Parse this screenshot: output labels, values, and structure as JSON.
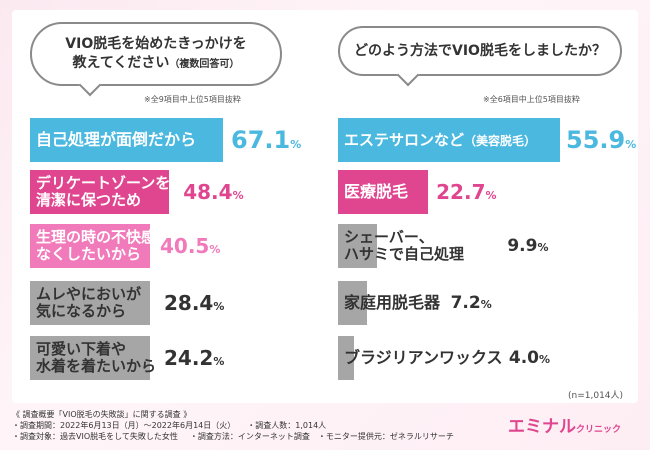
{
  "colors": {
    "left_primary": "#4bb8e0",
    "left_secondary": "#e0468f",
    "left_tertiary": "#f17aba",
    "gray": "#a6a6a6",
    "right_primary": "#4bb8e0",
    "right_secondary": "#e0468f",
    "text_dark": "#333333",
    "white": "#ffffff"
  },
  "left": {
    "question_line1": "VIO脱毛を始めたきっかけを",
    "question_line2": "教えてください",
    "question_suffix": "（複数回答可）",
    "note": "※全9項目中上位5項目抜粋"
  },
  "right": {
    "question": "どのよう方法でVIO脱毛をしましたか？",
    "note": "※全6項目中上位5項目抜粋"
  },
  "chart_data": [
    {
      "type": "bar",
      "orientation": "horizontal",
      "title": "VIO脱毛を始めたきっかけを教えてください（複数回答可）",
      "unit": "%",
      "categories": [
        [
          "自己処理が面倒だから"
        ],
        [
          "デリケートゾーンを",
          "清潔に保つため"
        ],
        [
          "生理の時の不快感を",
          "なくしたいから"
        ],
        [
          "ムレやにおいが",
          "気になるから"
        ],
        [
          "可愛い下着や",
          "水着を着たいから"
        ]
      ],
      "values": [
        "67.1",
        "48.4",
        "40.5",
        "28.4",
        "24.2"
      ]
    },
    {
      "type": "bar",
      "orientation": "horizontal",
      "title": "どのよう方法でVIO脱毛をしましたか？",
      "unit": "%",
      "categories": [
        [
          "エステサロンなど",
          "（美容脱毛）"
        ],
        [
          "医療脱毛"
        ],
        [
          "シェーバー、",
          "ハサミで自己処理"
        ],
        [
          "家庭用脱毛器"
        ],
        [
          "ブラジリアンワックス"
        ]
      ],
      "values": [
        "55.9",
        "22.7",
        "9.9",
        "7.2",
        "4.0"
      ]
    }
  ],
  "sample_size": "(n=1,014人)",
  "footer": {
    "line1": "《 調査概要「VIO脱毛の失敗談」に関する調査 》",
    "line2a": "・調査期間：2022年6月13日（月）〜2022年6月14日（火）",
    "line2b": "・調査人数：1,014人",
    "line3a": "・調査対象：過去VIO脱毛をして失敗した女性",
    "line3b": "・調査方法：インターネット調査",
    "line3c": "・モニター提供元：ゼネラルリサーチ"
  },
  "logo": {
    "main": "エミナル",
    "sub": "クリニック"
  }
}
